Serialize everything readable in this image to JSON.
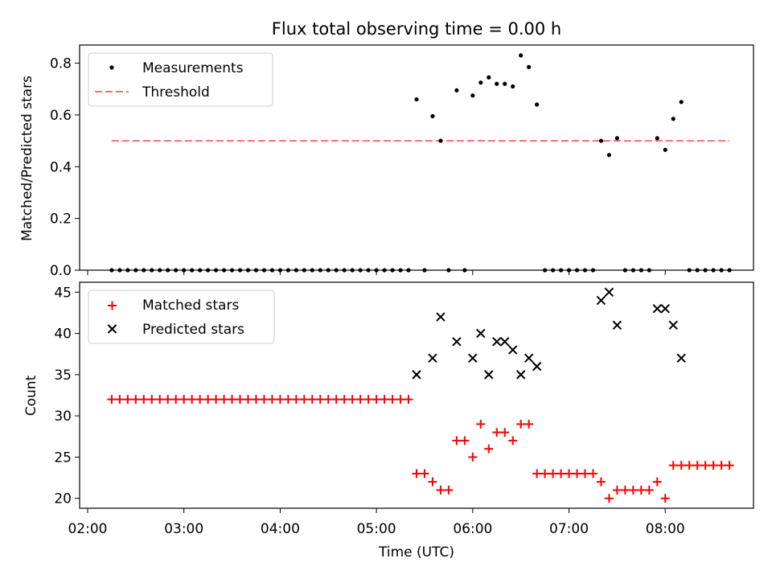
{
  "title": "Flux total observing time = 0.00 h",
  "colors": {
    "measurements": "#000000",
    "threshold": "#ff6f6f",
    "matched": "#ff0000",
    "predicted": "#000000"
  },
  "chart_data": [
    {
      "type": "scatter",
      "ylabel": "Matched/Predicted stars",
      "ylim": [
        0,
        0.87
      ],
      "yticks": [
        "0.0",
        "0.2",
        "0.4",
        "0.6",
        "0.8"
      ],
      "legend_position": "upper-left",
      "legend": {
        "measurements": "Measurements",
        "threshold": "Threshold"
      },
      "threshold": {
        "y": 0.5,
        "x_range": [
          "02:15",
          "08:40"
        ]
      },
      "series": [
        {
          "name": "Measurements",
          "points": [
            [
              "02:15",
              0
            ],
            [
              "02:20",
              0
            ],
            [
              "02:25",
              0
            ],
            [
              "02:30",
              0
            ],
            [
              "02:35",
              0
            ],
            [
              "02:40",
              0
            ],
            [
              "02:45",
              0
            ],
            [
              "02:50",
              0
            ],
            [
              "02:55",
              0
            ],
            [
              "03:00",
              0
            ],
            [
              "03:05",
              0
            ],
            [
              "03:10",
              0
            ],
            [
              "03:15",
              0
            ],
            [
              "03:20",
              0
            ],
            [
              "03:25",
              0
            ],
            [
              "03:30",
              0
            ],
            [
              "03:35",
              0
            ],
            [
              "03:40",
              0
            ],
            [
              "03:45",
              0
            ],
            [
              "03:50",
              0
            ],
            [
              "03:55",
              0
            ],
            [
              "04:00",
              0
            ],
            [
              "04:05",
              0
            ],
            [
              "04:10",
              0
            ],
            [
              "04:15",
              0
            ],
            [
              "04:20",
              0
            ],
            [
              "04:25",
              0
            ],
            [
              "04:30",
              0
            ],
            [
              "04:35",
              0
            ],
            [
              "04:40",
              0
            ],
            [
              "04:45",
              0
            ],
            [
              "04:50",
              0
            ],
            [
              "04:55",
              0
            ],
            [
              "05:00",
              0
            ],
            [
              "05:05",
              0
            ],
            [
              "05:10",
              0
            ],
            [
              "05:15",
              0
            ],
            [
              "05:20",
              0
            ],
            [
              "05:25",
              0.66
            ],
            [
              "05:30",
              0
            ],
            [
              "05:35",
              0.595
            ],
            [
              "05:40",
              0.5
            ],
            [
              "05:45",
              0
            ],
            [
              "05:50",
              0.695
            ],
            [
              "05:55",
              0
            ],
            [
              "06:00",
              0.675
            ],
            [
              "06:05",
              0.725
            ],
            [
              "06:10",
              0.745
            ],
            [
              "06:15",
              0.72
            ],
            [
              "06:20",
              0.72
            ],
            [
              "06:25",
              0.71
            ],
            [
              "06:30",
              0.83
            ],
            [
              "06:35",
              0.785
            ],
            [
              "06:40",
              0.64
            ],
            [
              "06:45",
              0
            ],
            [
              "06:50",
              0
            ],
            [
              "06:55",
              0
            ],
            [
              "07:00",
              0
            ],
            [
              "07:05",
              0
            ],
            [
              "07:10",
              0
            ],
            [
              "07:15",
              0
            ],
            [
              "07:20",
              0.5
            ],
            [
              "07:25",
              0.445
            ],
            [
              "07:30",
              0.51
            ],
            [
              "07:35",
              0
            ],
            [
              "07:40",
              0
            ],
            [
              "07:45",
              0
            ],
            [
              "07:50",
              0
            ],
            [
              "07:55",
              0.51
            ],
            [
              "08:00",
              0.465
            ],
            [
              "08:05",
              0.585
            ],
            [
              "08:10",
              0.65
            ],
            [
              "08:15",
              0
            ],
            [
              "08:20",
              0
            ],
            [
              "08:25",
              0
            ],
            [
              "08:30",
              0
            ],
            [
              "08:35",
              0
            ],
            [
              "08:40",
              0
            ]
          ]
        }
      ]
    },
    {
      "type": "scatter",
      "title": "",
      "xlabel": "Time (UTC)",
      "ylabel": "Count",
      "ylim": [
        18.8,
        46.2
      ],
      "yticks": [
        "20",
        "25",
        "30",
        "35",
        "40",
        "45"
      ],
      "xlim": [
        "01:55",
        "08:55"
      ],
      "xticks": [
        "02:00",
        "03:00",
        "04:00",
        "05:00",
        "06:00",
        "07:00",
        "08:00"
      ],
      "legend_position": "upper-left",
      "legend": {
        "matched": "Matched stars",
        "predicted": "Predicted stars"
      },
      "series": [
        {
          "name": "Matched stars",
          "marker": "+",
          "points": [
            [
              "02:15",
              32
            ],
            [
              "02:20",
              32
            ],
            [
              "02:25",
              32
            ],
            [
              "02:30",
              32
            ],
            [
              "02:35",
              32
            ],
            [
              "02:40",
              32
            ],
            [
              "02:45",
              32
            ],
            [
              "02:50",
              32
            ],
            [
              "02:55",
              32
            ],
            [
              "03:00",
              32
            ],
            [
              "03:05",
              32
            ],
            [
              "03:10",
              32
            ],
            [
              "03:15",
              32
            ],
            [
              "03:20",
              32
            ],
            [
              "03:25",
              32
            ],
            [
              "03:30",
              32
            ],
            [
              "03:35",
              32
            ],
            [
              "03:40",
              32
            ],
            [
              "03:45",
              32
            ],
            [
              "03:50",
              32
            ],
            [
              "03:55",
              32
            ],
            [
              "04:00",
              32
            ],
            [
              "04:05",
              32
            ],
            [
              "04:10",
              32
            ],
            [
              "04:15",
              32
            ],
            [
              "04:20",
              32
            ],
            [
              "04:25",
              32
            ],
            [
              "04:30",
              32
            ],
            [
              "04:35",
              32
            ],
            [
              "04:40",
              32
            ],
            [
              "04:45",
              32
            ],
            [
              "04:50",
              32
            ],
            [
              "04:55",
              32
            ],
            [
              "05:00",
              32
            ],
            [
              "05:05",
              32
            ],
            [
              "05:10",
              32
            ],
            [
              "05:15",
              32
            ],
            [
              "05:20",
              32
            ],
            [
              "05:25",
              23
            ],
            [
              "05:30",
              23
            ],
            [
              "05:35",
              22
            ],
            [
              "05:40",
              21
            ],
            [
              "05:45",
              21
            ],
            [
              "05:50",
              27
            ],
            [
              "05:55",
              27
            ],
            [
              "06:00",
              25
            ],
            [
              "06:05",
              29
            ],
            [
              "06:10",
              26
            ],
            [
              "06:15",
              28
            ],
            [
              "06:20",
              28
            ],
            [
              "06:25",
              27
            ],
            [
              "06:30",
              29
            ],
            [
              "06:35",
              29
            ],
            [
              "06:40",
              23
            ],
            [
              "06:45",
              23
            ],
            [
              "06:50",
              23
            ],
            [
              "06:55",
              23
            ],
            [
              "07:00",
              23
            ],
            [
              "07:05",
              23
            ],
            [
              "07:10",
              23
            ],
            [
              "07:15",
              23
            ],
            [
              "07:20",
              22
            ],
            [
              "07:25",
              20
            ],
            [
              "07:30",
              21
            ],
            [
              "07:35",
              21
            ],
            [
              "07:40",
              21
            ],
            [
              "07:45",
              21
            ],
            [
              "07:50",
              21
            ],
            [
              "07:55",
              22
            ],
            [
              "08:00",
              20
            ],
            [
              "08:05",
              24
            ],
            [
              "08:10",
              24
            ],
            [
              "08:15",
              24
            ],
            [
              "08:20",
              24
            ],
            [
              "08:25",
              24
            ],
            [
              "08:30",
              24
            ],
            [
              "08:35",
              24
            ],
            [
              "08:40",
              24
            ]
          ]
        },
        {
          "name": "Predicted stars",
          "marker": "x",
          "points": [
            [
              "05:25",
              35
            ],
            [
              "05:35",
              37
            ],
            [
              "05:40",
              42
            ],
            [
              "05:50",
              39
            ],
            [
              "06:00",
              37
            ],
            [
              "06:05",
              40
            ],
            [
              "06:10",
              35
            ],
            [
              "06:15",
              39
            ],
            [
              "06:20",
              39
            ],
            [
              "06:25",
              38
            ],
            [
              "06:30",
              35
            ],
            [
              "06:35",
              37
            ],
            [
              "06:40",
              36
            ],
            [
              "07:20",
              44
            ],
            [
              "07:25",
              45
            ],
            [
              "07:30",
              41
            ],
            [
              "07:55",
              43
            ],
            [
              "08:00",
              43
            ],
            [
              "08:05",
              41
            ],
            [
              "08:10",
              37
            ]
          ]
        }
      ]
    }
  ]
}
